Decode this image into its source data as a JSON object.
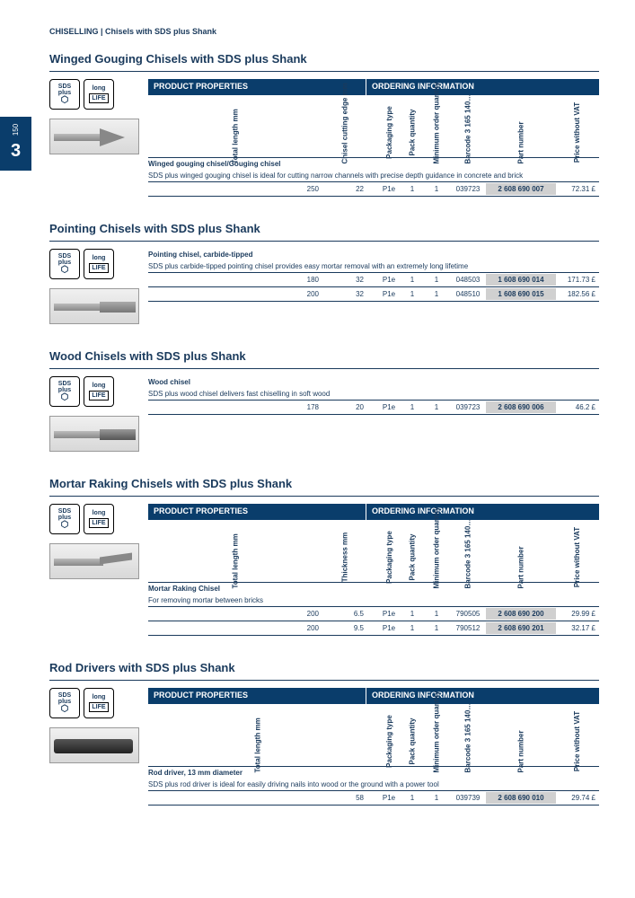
{
  "breadcrumb": "CHISELLING | Chisels with SDS plus Shank",
  "page_number": "150",
  "chapter": "3",
  "hdr": {
    "pp": "PRODUCT PROPERTIES",
    "oi": "ORDERING INFORMATION"
  },
  "cols": {
    "total_length": "Total length mm",
    "cutting_edge": "Chisel cutting edge mm",
    "thickness": "Thickness mm",
    "pkg_type": "Packaging type",
    "pack_qty": "Pack quantity",
    "min_order": "Minimum order quantity",
    "barcode": "Barcode 3 165 140…",
    "part_num": "Part number",
    "price": "Price without VAT"
  },
  "badges": {
    "sds": "SDS plus",
    "long": "long",
    "life": "LIFE"
  },
  "sections": [
    {
      "title": "Winged Gouging Chisels with SDS plus Shank",
      "show_header": true,
      "col2": "cutting_edge",
      "img": "gouge",
      "desc_bold": "Winged gouging chisel/Gouging chisel",
      "desc": "SDS plus winged gouging chisel is ideal for cutting narrow channels with precise depth guidance in concrete and brick",
      "rows": [
        {
          "v1": "250",
          "v2": "22",
          "pkg": "P1e",
          "pq": "1",
          "min": "1",
          "bc": "039723",
          "pn": "2 608 690 007",
          "pr": "72.31 £"
        }
      ]
    },
    {
      "title": "Pointing Chisels with SDS plus Shank",
      "show_header": false,
      "col2": "cutting_edge",
      "img": "flat",
      "desc_bold": "Pointing chisel, carbide-tipped",
      "desc": "SDS plus carbide-tipped pointing chisel provides easy mortar removal with an extremely long lifetime",
      "rows": [
        {
          "v1": "180",
          "v2": "32",
          "pkg": "P1e",
          "pq": "1",
          "min": "1",
          "bc": "048503",
          "pn": "1 608 690 014",
          "pr": "171.73 £"
        },
        {
          "v1": "200",
          "v2": "32",
          "pkg": "P1e",
          "pq": "1",
          "min": "1",
          "bc": "048510",
          "pn": "1 608 690 015",
          "pr": "182.56 £"
        }
      ]
    },
    {
      "title": "Wood Chisels with SDS plus Shank",
      "show_header": false,
      "col2": "cutting_edge",
      "img": "wood",
      "desc_bold": "Wood chisel",
      "desc": "SDS plus wood chisel delivers fast chiselling in soft wood",
      "rows": [
        {
          "v1": "178",
          "v2": "20",
          "pkg": "P1e",
          "pq": "1",
          "min": "1",
          "bc": "039723",
          "pn": "2 608 690 006",
          "pr": "46.2 £"
        }
      ]
    },
    {
      "title": "Mortar Raking Chisels with SDS plus Shank",
      "show_header": true,
      "col2": "thickness",
      "img": "mortar",
      "desc_bold": "Mortar Raking Chisel",
      "desc": "For removing mortar between bricks",
      "rows": [
        {
          "v1": "200",
          "v2": "6.5",
          "pkg": "P1e",
          "pq": "1",
          "min": "1",
          "bc": "790505",
          "pn": "2 608 690 200",
          "pr": "29.99 £"
        },
        {
          "v1": "200",
          "v2": "9.5",
          "pkg": "P1e",
          "pq": "1",
          "min": "1",
          "bc": "790512",
          "pn": "2 608 690 201",
          "pr": "32.17 £"
        }
      ]
    },
    {
      "title": "Rod Drivers with SDS plus Shank",
      "show_header": true,
      "col2": null,
      "img": "rod",
      "desc_bold": "Rod driver, 13 mm diameter",
      "desc": "SDS plus rod driver is ideal for easily driving nails into wood or the ground with a power tool",
      "rows": [
        {
          "v1": "58",
          "v2": "",
          "pkg": "P1e",
          "pq": "1",
          "min": "1",
          "bc": "039739",
          "pn": "2 608 690 010",
          "pr": "29.74 £"
        }
      ]
    }
  ]
}
